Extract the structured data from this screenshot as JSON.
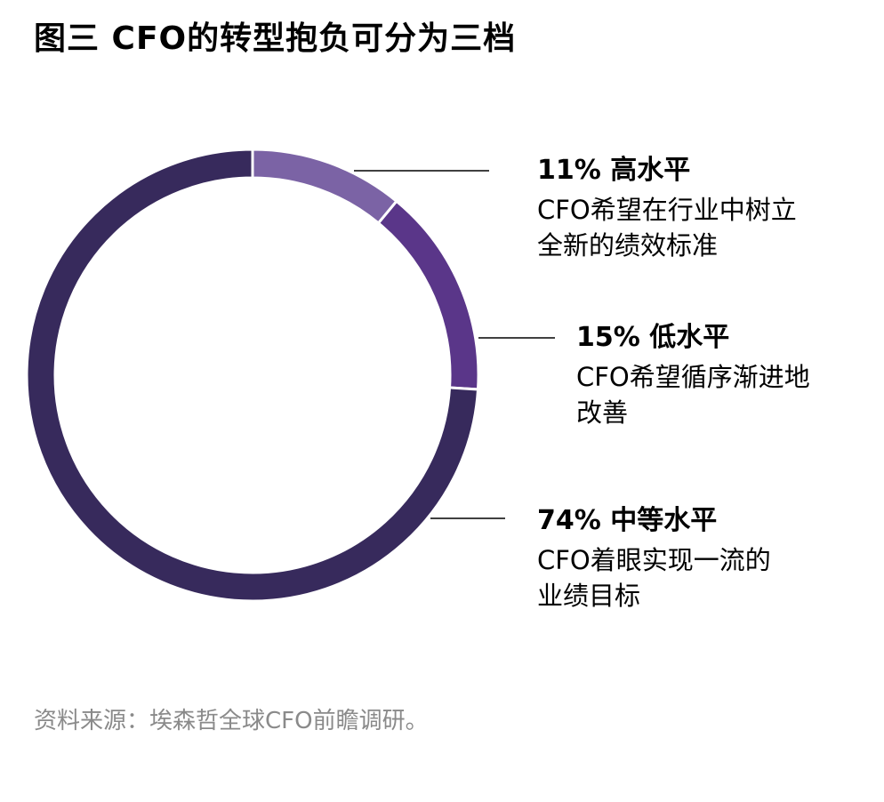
{
  "title": "图三  CFO的转型抱负可分为三档",
  "source": "资料来源：埃森哲全球CFO前瞻调研。",
  "chart_data": {
    "type": "pie",
    "donut": true,
    "title": "图三  CFO的转型抱负可分为三档",
    "categories": [
      "高水平",
      "低水平",
      "中等水平"
    ],
    "values": [
      11,
      15,
      74
    ],
    "unit": "%",
    "colors": [
      "#7b63a5",
      "#5a3689",
      "#372a5c"
    ],
    "labels": [
      {
        "head": "11% 高水平",
        "desc": [
          "CFO希望在行业中树立",
          "全新的绩效标准"
        ]
      },
      {
        "head": "15% 低水平",
        "desc": [
          "CFO希望循序渐进地",
          "改善"
        ]
      },
      {
        "head": "74% 中等水平",
        "desc": [
          "CFO着眼实现一流的",
          "业绩目标"
        ]
      }
    ],
    "legend": "right"
  }
}
